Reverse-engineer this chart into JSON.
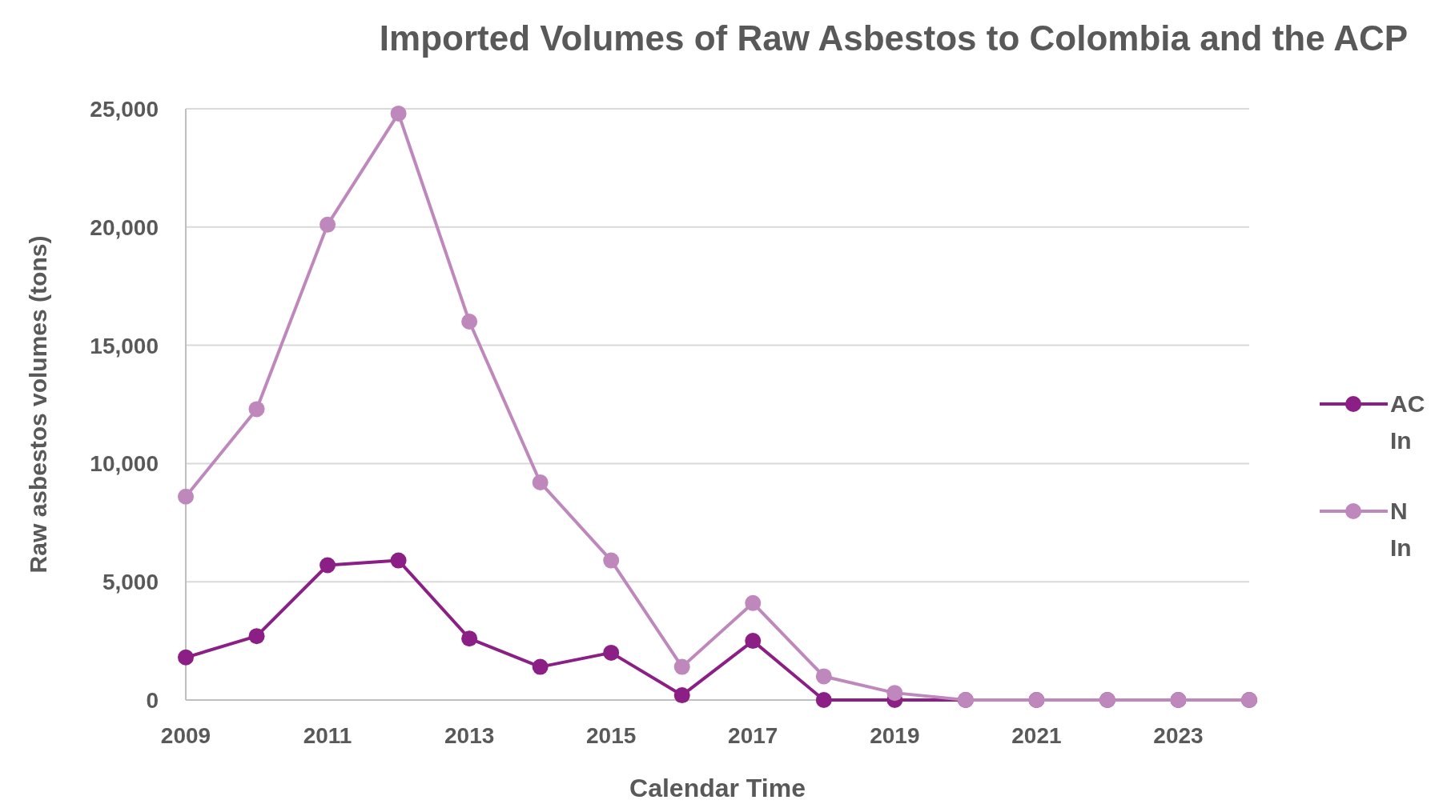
{
  "chart_data": {
    "type": "line",
    "title": "Imported Volumes of Raw Asbestos to Colombia and the ACP",
    "xlabel": "Calendar Time",
    "ylabel": "Raw asbestos volumes (tons)",
    "x": [
      2009,
      2010,
      2011,
      2012,
      2013,
      2014,
      2015,
      2016,
      2017,
      2018,
      2019,
      2020,
      2021,
      2022,
      2023,
      2024
    ],
    "series": [
      {
        "name": "AC In",
        "color": "#8b1f86",
        "values": [
          1800,
          2700,
          5700,
          5900,
          2600,
          1400,
          2000,
          200,
          2500,
          0,
          0,
          0,
          0,
          0,
          0,
          0
        ]
      },
      {
        "name": "N In",
        "color": "#bf88bc",
        "values": [
          8600,
          12300,
          20100,
          24800,
          16000,
          9200,
          5900,
          1400,
          4100,
          1000,
          300,
          0,
          0,
          0,
          0,
          0
        ]
      }
    ],
    "xlim": [
      2009,
      2024
    ],
    "xticks": [
      2009,
      2011,
      2013,
      2015,
      2017,
      2019,
      2021,
      2023
    ],
    "ylim": [
      0,
      25000
    ],
    "yticks": [
      {
        "value": 0,
        "label": "0"
      },
      {
        "value": 5000,
        "label": "5,000"
      },
      {
        "value": 10000,
        "label": "10,000"
      },
      {
        "value": 15000,
        "label": "15,000"
      },
      {
        "value": 20000,
        "label": "20,000"
      },
      {
        "value": 25000,
        "label": "25,000"
      }
    ],
    "grid": "y",
    "legend": "right",
    "marker": "circle",
    "line_style": "solid"
  }
}
